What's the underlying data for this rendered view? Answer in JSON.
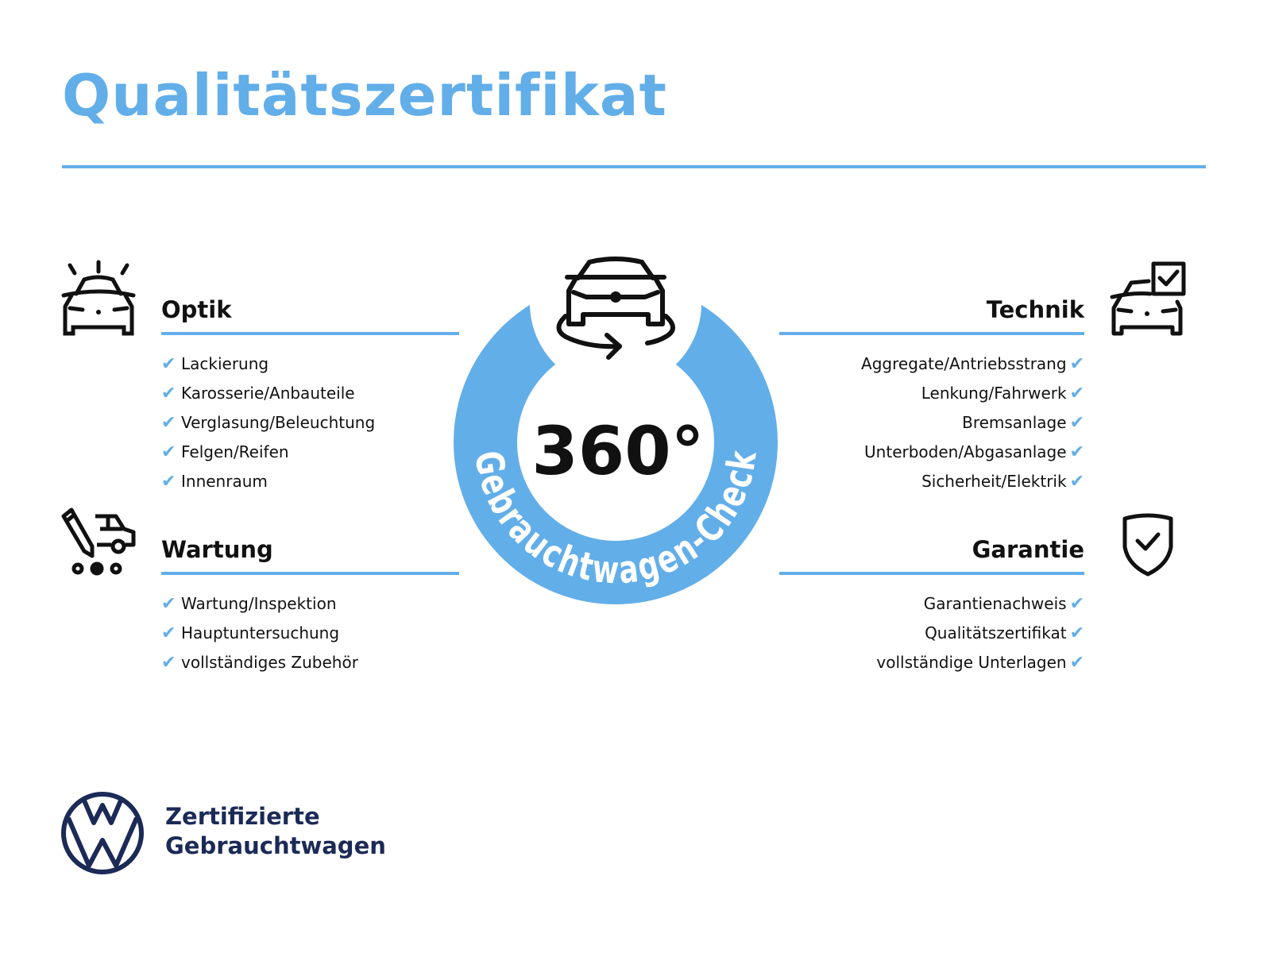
{
  "title": "Qualitätszertifikat",
  "colors": {
    "accent": "#62aee9",
    "text": "#111111",
    "brand_navy": "#1b2a56"
  },
  "badge": {
    "number": "360°",
    "ring_text": "Gebrauchtwagen-Check",
    "icon": "car-rotate-icon"
  },
  "sections": {
    "optik": {
      "heading": "Optik",
      "icon": "car-shine-icon",
      "items": [
        "Lackierung",
        "Karosserie/Anbauteile",
        "Verglasung/Beleuchtung",
        "Felgen/Reifen",
        "Innenraum"
      ]
    },
    "wartung": {
      "heading": "Wartung",
      "icon": "van-pencil-icon",
      "items": [
        "Wartung/Inspektion",
        "Hauptuntersuchung",
        "vollständiges Zubehör"
      ]
    },
    "technik": {
      "heading": "Technik",
      "icon": "car-checkbox-icon",
      "items": [
        "Aggregate/Antriebsstrang",
        "Lenkung/Fahrwerk",
        "Bremsanlage",
        "Unterboden/Abgasanlage",
        "Sicherheit/Elektrik"
      ]
    },
    "garantie": {
      "heading": "Garantie",
      "icon": "shield-check-icon",
      "items": [
        "Garantienachweis",
        "Qualitätszertifikat",
        "vollständige Unterlagen"
      ]
    }
  },
  "check_mark": "✔",
  "footer": {
    "line1": "Zertifizierte",
    "line2": "Gebrauchtwagen",
    "logo": "VW"
  }
}
